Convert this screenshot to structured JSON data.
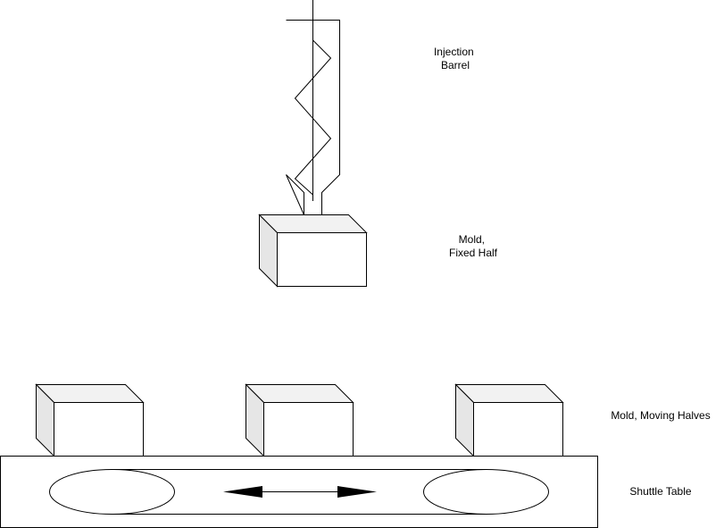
{
  "labels": {
    "injection_barrel": [
      "Injection",
      "Barrel"
    ],
    "mold_fixed_half": [
      "Mold,",
      "Fixed Half"
    ],
    "mold_moving_halves": "Mold, Moving Halves",
    "shuttle_table": "Shuttle Table"
  },
  "colors": {
    "stroke": "#000000",
    "box_front": "#ffffff",
    "box_top": "#f2f2f2",
    "box_side": "#e6e6e6"
  }
}
